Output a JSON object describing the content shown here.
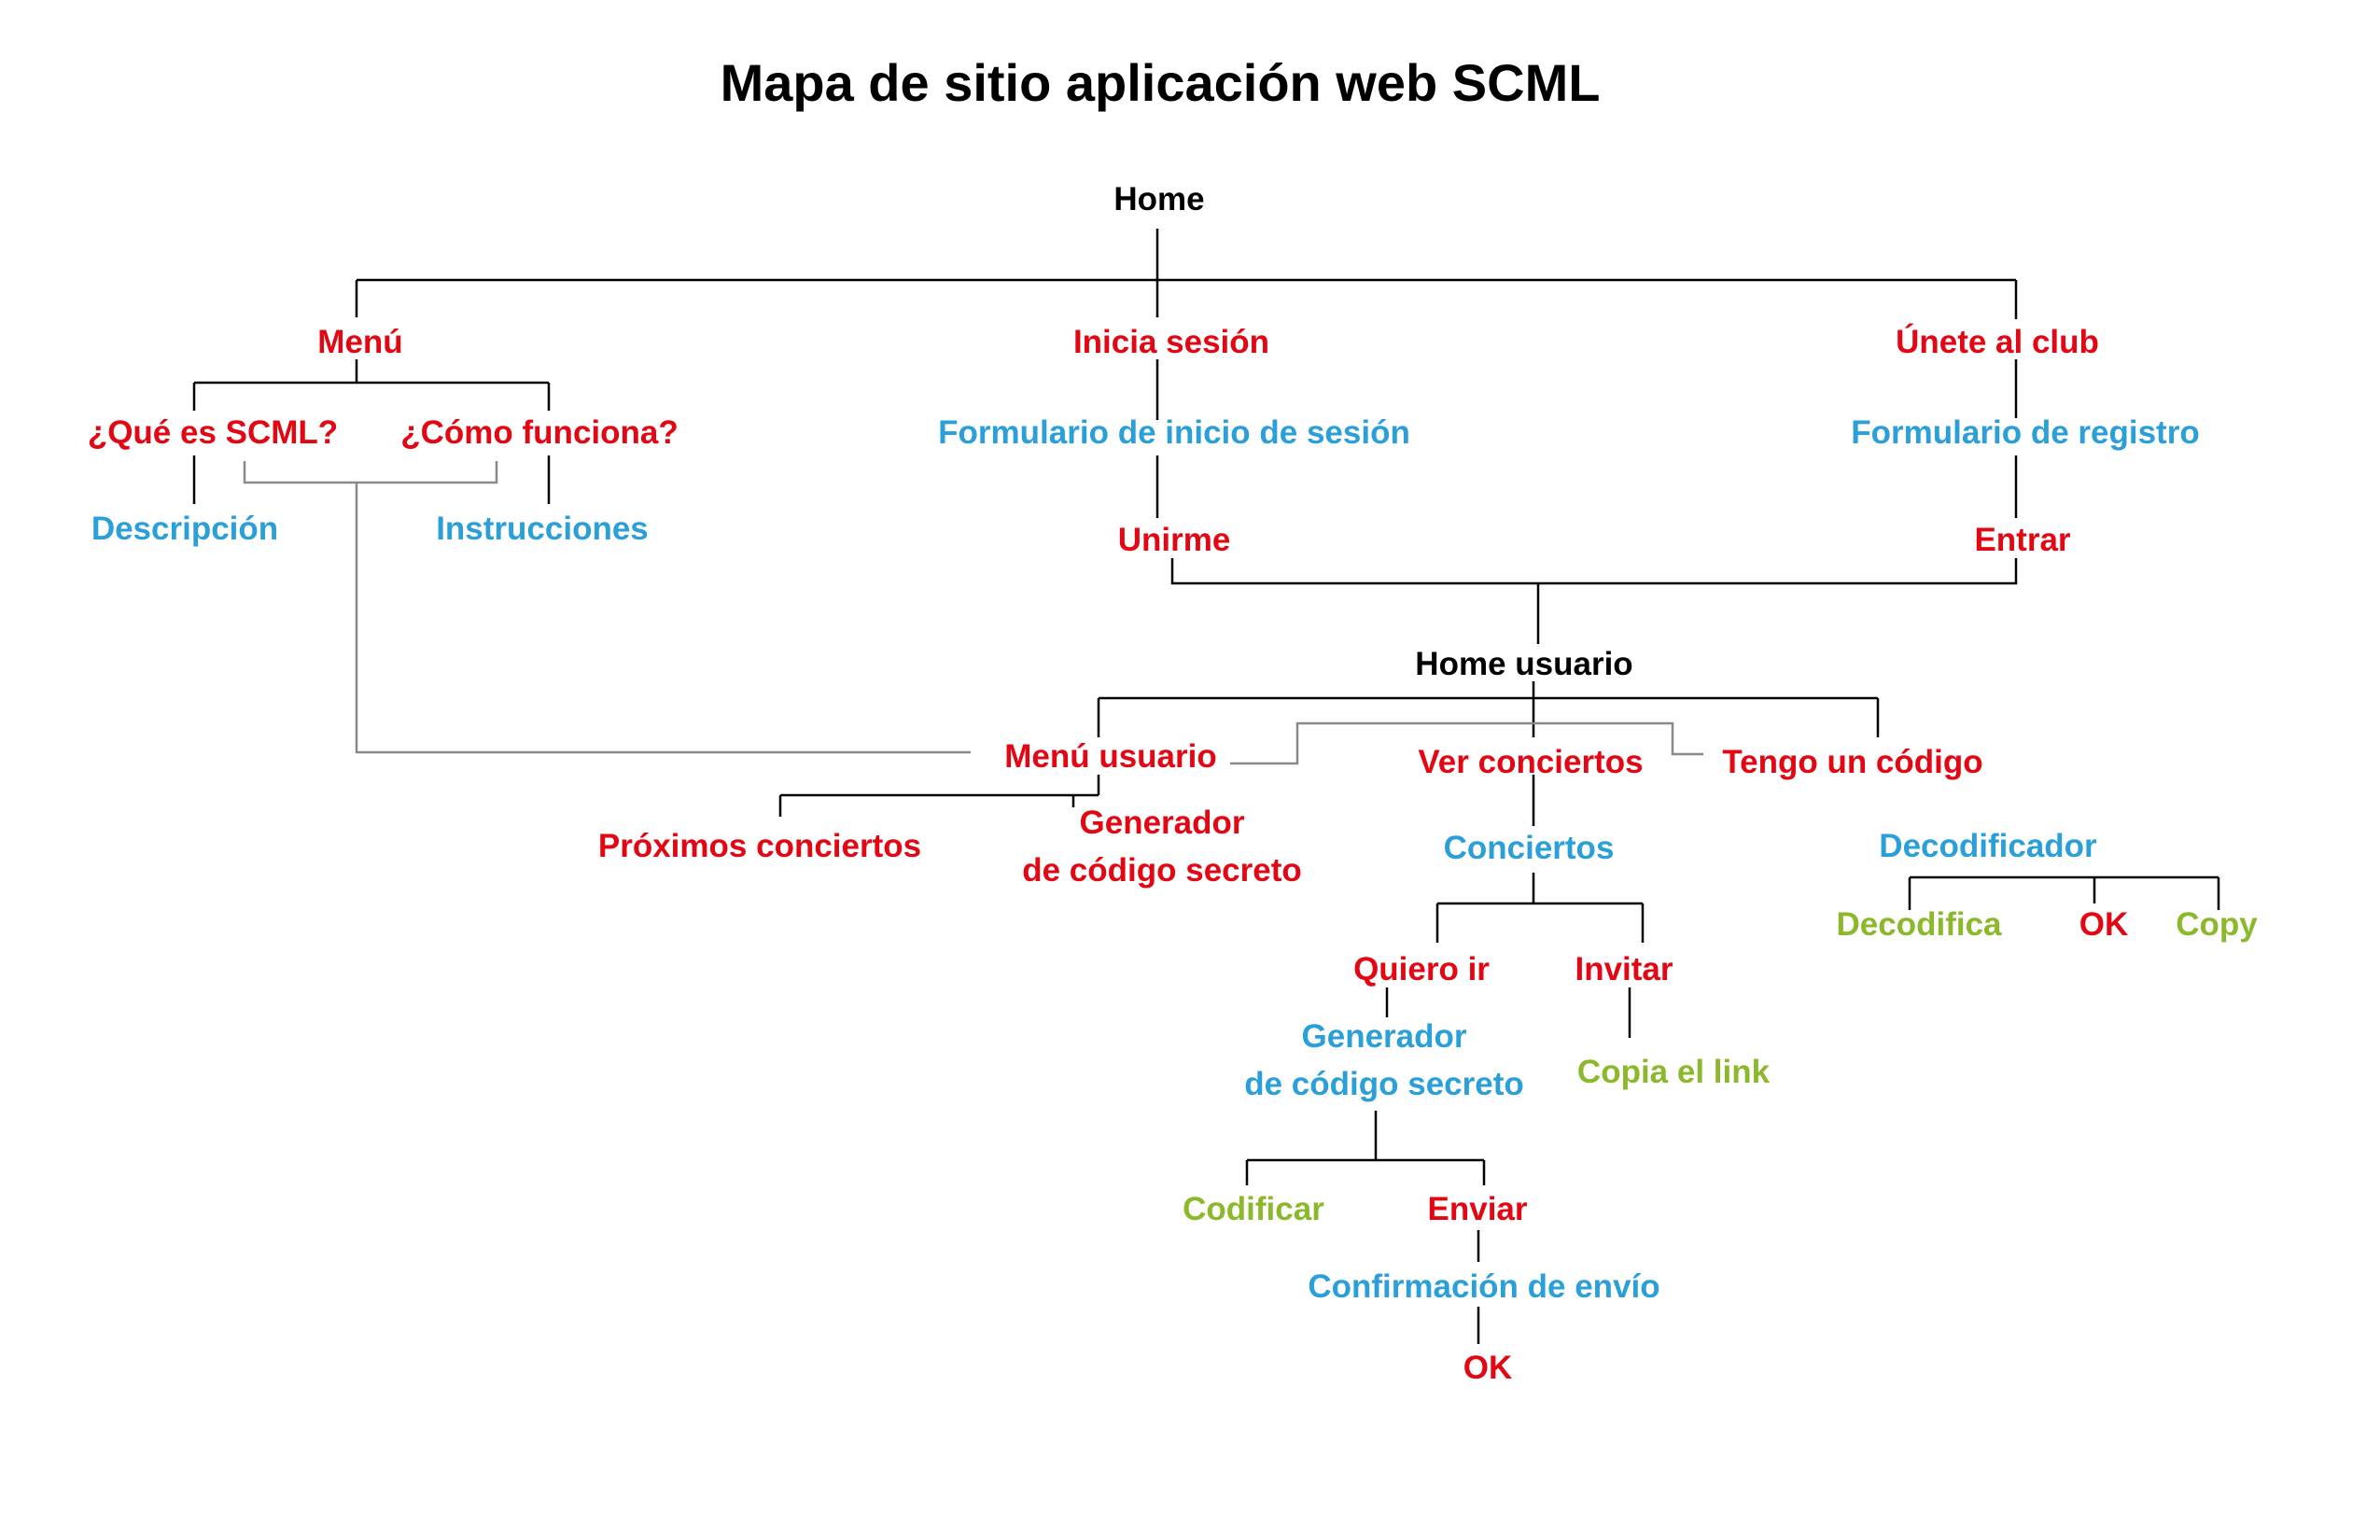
{
  "title": "Mapa de sitio aplicación web SCML",
  "colors": {
    "page": "#000000",
    "section": "#e30613",
    "content": "#2a9fd8",
    "action": "#8cb82b",
    "connector": "#000000",
    "cross_link": "#8a8a8a"
  },
  "nodes": {
    "home": "Home",
    "menu": "Menú",
    "inicia_sesion": "Inicia sesión",
    "unete": "Únete al club",
    "que_es": "¿Qué es SCML?",
    "como_funciona": "¿Cómo funciona?",
    "descripcion": "Descripción",
    "instrucciones": "Instrucciones",
    "form_inicio": "Formulario de inicio de sesión",
    "unirme": "Unirme",
    "form_registro": "Formulario de registro",
    "entrar": "Entrar",
    "home_usuario": "Home usuario",
    "menu_usuario": "Menú usuario",
    "ver_conciertos": "Ver conciertos",
    "tengo_codigo": "Tengo un código",
    "proximos": "Próximos conciertos",
    "generador_1_line1": "Generador",
    "generador_1_line2": "de código secreto",
    "conciertos": "Conciertos",
    "decodificador": "Decodificador",
    "decodifica": "Decodifica",
    "ok_1": "OK",
    "copy": "Copy",
    "quiero_ir": "Quiero ir",
    "invitar": "Invitar",
    "generador_2_line1": "Generador",
    "generador_2_line2": "de código secreto",
    "copia_link": "Copia el link",
    "codificar": "Codificar",
    "enviar": "Enviar",
    "confirmacion": "Confirmación de envío",
    "ok_2": "OK"
  }
}
